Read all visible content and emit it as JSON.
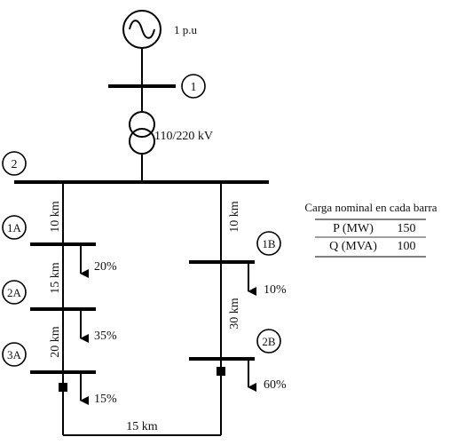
{
  "generator": {
    "voltage_label": "1 p.u",
    "symbol": "ac-generator-icon"
  },
  "buses": {
    "b1": "1",
    "b2": "2",
    "b1A": "1A",
    "b2A": "2A",
    "b3A": "3A",
    "b1B": "1B",
    "b2B": "2B"
  },
  "transformer": {
    "label": "110/220 kV",
    "symbol": "transformer-icon"
  },
  "lines": {
    "l_2_1A": "10 km",
    "l_1A_2A": "15 km",
    "l_2A_3A": "20 km",
    "l_2_1B": "10 km",
    "l_1B_2B": "30 km",
    "l_3A_2B": "15 km"
  },
  "loads": {
    "load_1A": "20%",
    "load_2A": "35%",
    "load_3A": "15%",
    "load_1B": "10%",
    "load_2B": "60%"
  },
  "table": {
    "title": "Carga nominal en cada barra",
    "rows": [
      {
        "param": "P (MW)",
        "value": "150"
      },
      {
        "param": "Q (MVA)",
        "value": "100"
      }
    ]
  },
  "colors": {
    "line": "#000000",
    "background": "#ffffff"
  }
}
